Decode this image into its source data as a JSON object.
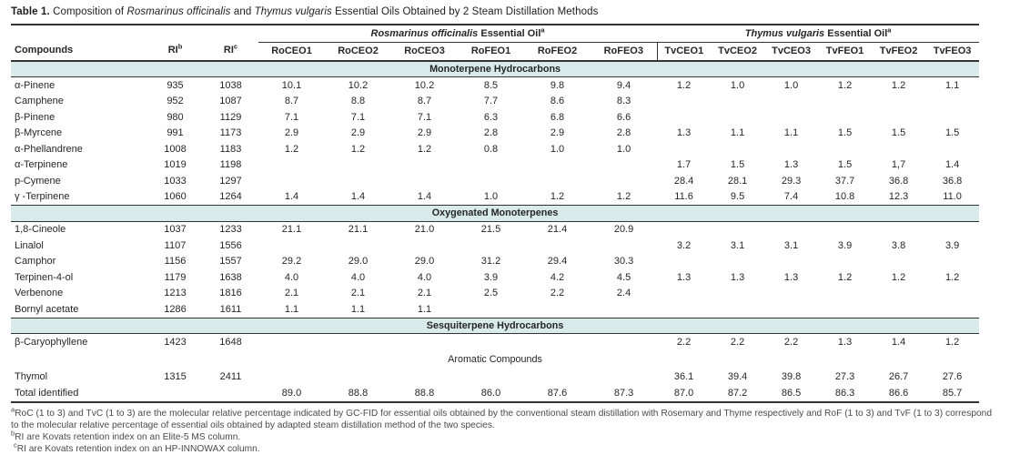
{
  "colors": {
    "band": "#d8eaea",
    "border": "#333333",
    "text": "#262626",
    "footnote_text": "#4a4a4a"
  },
  "title": {
    "bold": "Table 1.",
    "seg1": " Composition of ",
    "italic1": "Rosmarinus officinalis",
    "seg2": " and ",
    "italic2": "Thymus vulgaris",
    "seg3": " Essential Oils Obtained by 2 Steam Distillation Methods"
  },
  "header": {
    "compounds": "Compounds",
    "ri": "RI",
    "ri_sup_b": "b",
    "ri_sup_c": "c",
    "ro_group": {
      "italic": "Rosmarinus officinalis",
      "rest": " Essential Oil",
      "sup": "a"
    },
    "tv_group": {
      "italic": "Thymus vulgaris",
      "rest": " Essential Oil",
      "sup": "a"
    },
    "columns": [
      "RoCEO1",
      "RoCEO2",
      "RoCEO3",
      "RoFEO1",
      "RoFEO2",
      "RoFEO3",
      "TvCEO1",
      "TvCEO2",
      "TvCEO3",
      "TvFEO1",
      "TvFEO2",
      "TvFEO3"
    ]
  },
  "table": {
    "sections": [
      {
        "label": "Monoterpene Hydrocarbons",
        "style": "band",
        "rows": [
          {
            "compound": "α-Pinene",
            "ri_b": "935",
            "ri_c": "1038",
            "values": [
              "10.1",
              "10.2",
              "10.2",
              "8.5",
              "9.8",
              "9.4",
              "1.2",
              "1.0",
              "1.0",
              "1.2",
              "1.2",
              "1.1"
            ]
          },
          {
            "compound": "Camphene",
            "ri_b": "952",
            "ri_c": "1087",
            "values": [
              "8.7",
              "8.8",
              "8.7",
              "7.7",
              "8.6",
              "8.3",
              "",
              "",
              "",
              "",
              "",
              ""
            ]
          },
          {
            "compound": "β-Pinene",
            "ri_b": "980",
            "ri_c": "1129",
            "values": [
              "7.1",
              "7.1",
              "7.1",
              "6.3",
              "6.8",
              "6.6",
              "",
              "",
              "",
              "",
              "",
              ""
            ]
          },
          {
            "compound": "β-Myrcene",
            "ri_b": "991",
            "ri_c": "1173",
            "values": [
              "2.9",
              "2.9",
              "2.9",
              "2.8",
              "2.9",
              "2.8",
              "1.3",
              "1.1",
              "1.1",
              "1.5",
              "1.5",
              "1.5"
            ]
          },
          {
            "compound": "α-Phellandrene",
            "ri_b": "1008",
            "ri_c": "1183",
            "values": [
              "1.2",
              "1.2",
              "1.2",
              "0.8",
              "1.0",
              "1.0",
              "",
              "",
              "",
              "",
              "",
              ""
            ]
          },
          {
            "compound": "α-Terpinene",
            "ri_b": "1019",
            "ri_c": "1198",
            "values": [
              "",
              "",
              "",
              "",
              "",
              "",
              "1.7",
              "1.5",
              "1.3",
              "1.5",
              "1,7",
              "1.4"
            ]
          },
          {
            "compound": "p-Cymene",
            "ri_b": "1033",
            "ri_c": "1297",
            "values": [
              "",
              "",
              "",
              "",
              "",
              "",
              "28.4",
              "28.1",
              "29.3",
              "37.7",
              "36.8",
              "36.8"
            ]
          },
          {
            "compound": "γ -Terpinene",
            "ri_b": "1060",
            "ri_c": "1264",
            "values": [
              "1.4",
              "1.4",
              "1.4",
              "1.0",
              "1.2",
              "1.2",
              "11.6",
              "9.5",
              "7.4",
              "10.8",
              "12.3",
              "11.0"
            ]
          }
        ]
      },
      {
        "label": "Oxygenated Monoterpenes",
        "style": "band",
        "rows": [
          {
            "compound": "1,8-Cineole",
            "ri_b": "1037",
            "ri_c": "1233",
            "values": [
              "21.1",
              "21.1",
              "21.0",
              "21.5",
              "21.4",
              "20.9",
              "",
              "",
              "",
              "",
              "",
              ""
            ]
          },
          {
            "compound": "Linalol",
            "ri_b": "1107",
            "ri_c": "1556",
            "values": [
              "",
              "",
              "",
              "",
              "",
              "",
              "3.2",
              "3.1",
              "3.1",
              "3.9",
              "3.8",
              "3.9"
            ]
          },
          {
            "compound": "Camphor",
            "ri_b": "1156",
            "ri_c": "1557",
            "values": [
              "29.2",
              "29.0",
              "29.0",
              "31.2",
              "29.4",
              "30.3",
              "",
              "",
              "",
              "",
              "",
              ""
            ]
          },
          {
            "compound": "Terpinen-4-ol",
            "ri_b": "1179",
            "ri_c": "1638",
            "values": [
              "4.0",
              "4.0",
              "4.0",
              "3.9",
              "4.2",
              "4.5",
              "1.3",
              "1.3",
              "1.3",
              "1.2",
              "1.2",
              "1.2"
            ]
          },
          {
            "compound": "Verbenone",
            "ri_b": "1213",
            "ri_c": "1816",
            "values": [
              "2.1",
              "2.1",
              "2.1",
              "2.5",
              "2.2",
              "2.4",
              "",
              "",
              "",
              "",
              "",
              ""
            ]
          },
          {
            "compound": "Bornyl acetate",
            "ri_b": "1286",
            "ri_c": "1611",
            "values": [
              "1.1",
              "1.1",
              "1.1",
              "",
              "",
              "",
              "",
              "",
              "",
              "",
              "",
              ""
            ]
          }
        ]
      },
      {
        "label": "Sesquiterpene Hydrocarbons",
        "style": "band",
        "rows": [
          {
            "compound": "β-Caryophyllene",
            "ri_b": "1423",
            "ri_c": "1648",
            "values": [
              "",
              "",
              "",
              "",
              "",
              "",
              "2.2",
              "2.2",
              "2.2",
              "1.3",
              "1.4",
              "1.2"
            ]
          }
        ]
      },
      {
        "label": "Aromatic Compounds",
        "style": "plain",
        "rows": [
          {
            "compound": "Thymol",
            "ri_b": "1315",
            "ri_c": "2411",
            "values": [
              "",
              "",
              "",
              "",
              "",
              "",
              "36.1",
              "39.4",
              "39.8",
              "27.3",
              "26.7",
              "27.6"
            ]
          },
          {
            "compound": "Total identified",
            "ri_b": "",
            "ri_c": "",
            "values": [
              "89.0",
              "88.8",
              "88.8",
              "86.0",
              "87.6",
              "87.3",
              "87.0",
              "87.2",
              "86.5",
              "86.3",
              "86.6",
              "85.7"
            ]
          }
        ]
      }
    ]
  },
  "footnotes": [
    {
      "sup": "a",
      "text": "RoC (1 to 3) and TvC (1 to 3) are the molecular relative percentage indicated by GC-FID for essential oils obtained by the conventional steam distillation with Rosemary and Thyme respectively and RoF (1 to 3) and TvF (1 to 3) correspond to the molecular relative percentage of essential oils obtained by adapted steam distillation method of the two species."
    },
    {
      "sup": "b",
      "text": "RI are Kovats retention index on an Elite-5 MS column."
    },
    {
      "sup": "c",
      "text": "RI are Kovats retention index on an HP-INNOWAX column."
    }
  ]
}
